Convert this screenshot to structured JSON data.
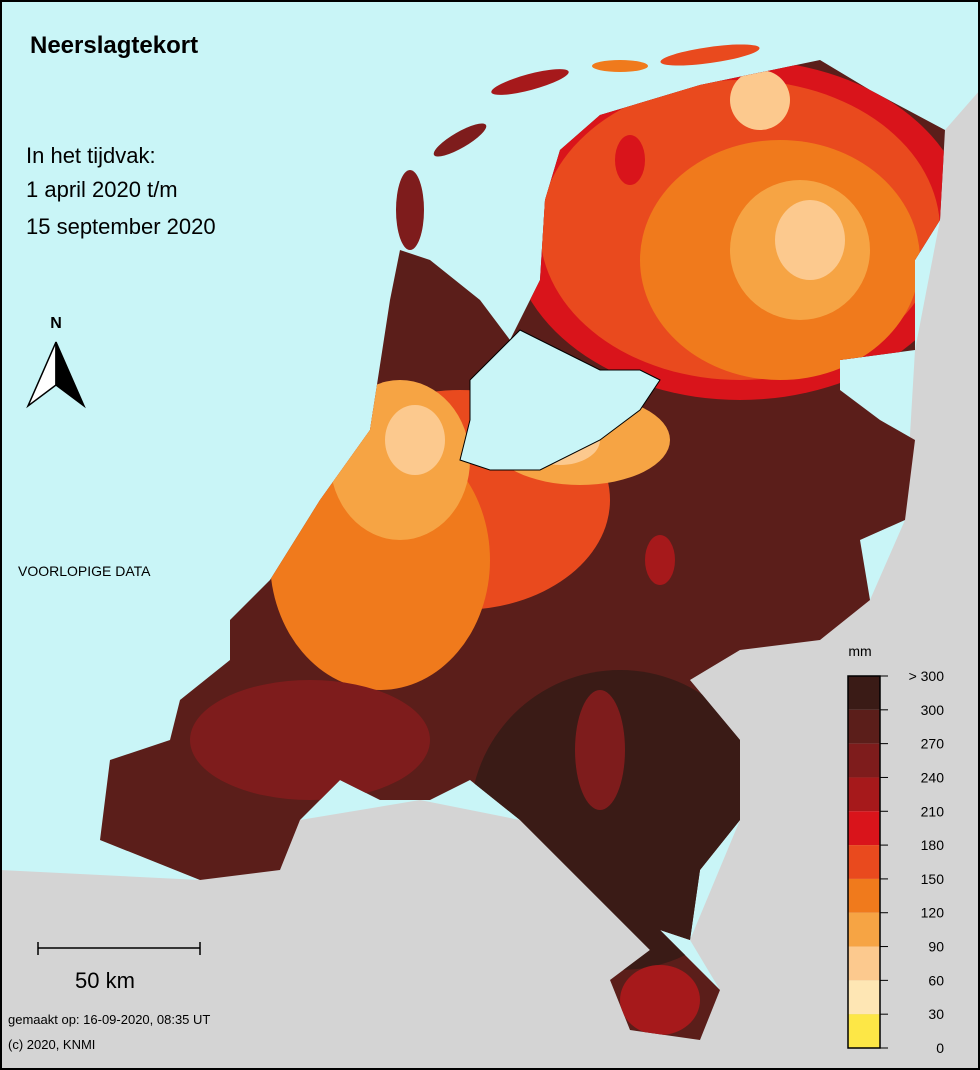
{
  "header": {
    "title": "Neerslagtekort",
    "period": [
      "In het tijdvak:",
      "1 april 2020 t/m",
      "15 september 2020"
    ]
  },
  "north_label": "N",
  "note": "VOORLOPIGE DATA",
  "legend": {
    "unit": "mm",
    "labels": [
      "> 300",
      "300",
      "270",
      "240",
      "210",
      "180",
      "150",
      "120",
      "90",
      "60",
      "30",
      "0"
    ],
    "colors": [
      "#3a1b16",
      "#5b1e1a",
      "#7e1c1c",
      "#a6191b",
      "#d9141b",
      "#e94a1e",
      "#f07a1c",
      "#f6a444",
      "#fcc98e",
      "#fee6b4",
      "#fde746"
    ]
  },
  "scale_label": "50 km",
  "footer": [
    "gemaakt op: 16-09-2020, 08:35 UT",
    "(c) 2020, KNMI"
  ]
}
